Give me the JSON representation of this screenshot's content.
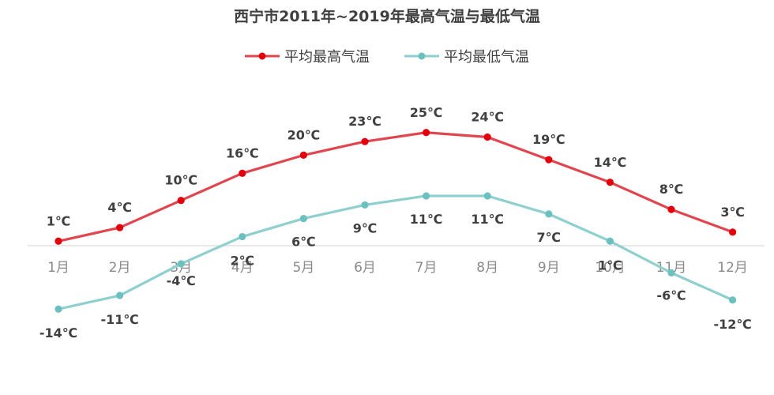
{
  "chart_data": {
    "type": "line",
    "title": "西宁市2011年~2019年最高气温与最低气温",
    "categories": [
      "1月",
      "2月",
      "3月",
      "4月",
      "5月",
      "6月",
      "7月",
      "8月",
      "9月",
      "10月",
      "11月",
      "12月"
    ],
    "series": [
      {
        "name": "平均最高气温",
        "color": "#e04650",
        "values": [
          1,
          4,
          10,
          16,
          20,
          23,
          25,
          24,
          19,
          14,
          8,
          3
        ],
        "labels": [
          "1℃",
          "4℃",
          "10℃",
          "16℃",
          "20℃",
          "23℃",
          "25℃",
          "24℃",
          "19℃",
          "14℃",
          "8℃",
          "3℃"
        ]
      },
      {
        "name": "平均最低气温",
        "color": "#8fcfcf",
        "values": [
          -14,
          -11,
          -4,
          2,
          6,
          9,
          11,
          11,
          7,
          1,
          -6,
          -12
        ],
        "labels": [
          "-14℃",
          "-11℃",
          "-4℃",
          "2℃",
          "6℃",
          "9℃",
          "11℃",
          "11℃",
          "7℃",
          "1℃",
          "-6℃",
          "-12℃"
        ]
      }
    ],
    "xlabel": "",
    "ylabel": "",
    "ylim": [
      -18,
      29
    ],
    "grid": false,
    "legend": "top"
  }
}
